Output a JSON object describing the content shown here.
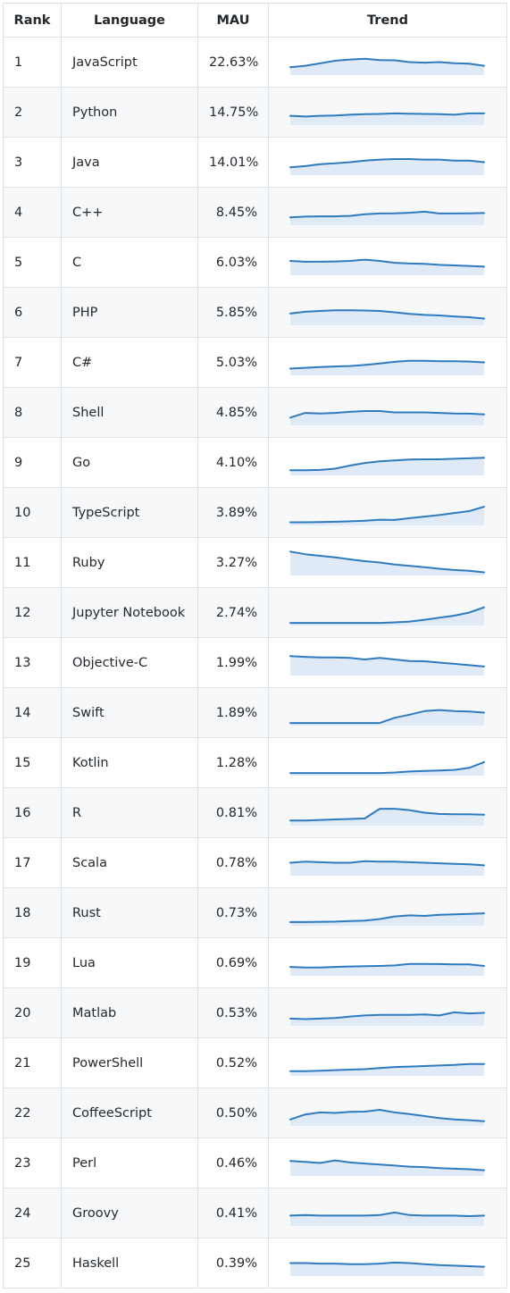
{
  "header": {
    "rank": "Rank",
    "language": "Language",
    "mau": "MAU",
    "trend": "Trend"
  },
  "colors": {
    "line": "#2f7bbf",
    "fill": "#dfeaf6",
    "border": "#dfe2e5",
    "stripe": "#f6f8fa"
  },
  "chart_data": {
    "type": "table",
    "columns": [
      "Rank",
      "Language",
      "MAU",
      "Trend"
    ],
    "rows": [
      {
        "rank": "1",
        "language": "JavaScript",
        "mau": "22.63%",
        "trend": [
          0.3,
          0.36,
          0.45,
          0.55,
          0.6,
          0.63,
          0.58,
          0.57,
          0.5,
          0.48,
          0.5,
          0.46,
          0.44,
          0.36
        ]
      },
      {
        "rank": "2",
        "language": "Python",
        "mau": "14.75%",
        "trend": [
          0.36,
          0.33,
          0.36,
          0.37,
          0.4,
          0.42,
          0.43,
          0.45,
          0.44,
          0.43,
          0.42,
          0.4,
          0.45,
          0.45
        ]
      },
      {
        "rank": "3",
        "language": "Java",
        "mau": "14.01%",
        "trend": [
          0.3,
          0.35,
          0.42,
          0.46,
          0.5,
          0.56,
          0.6,
          0.62,
          0.62,
          0.6,
          0.6,
          0.56,
          0.56,
          0.5
        ]
      },
      {
        "rank": "4",
        "language": "C++",
        "mau": "8.45%",
        "trend": [
          0.3,
          0.33,
          0.34,
          0.34,
          0.36,
          0.42,
          0.45,
          0.46,
          0.48,
          0.52,
          0.45,
          0.45,
          0.46,
          0.47
        ]
      },
      {
        "rank": "5",
        "language": "C",
        "mau": "6.03%",
        "trend": [
          0.55,
          0.52,
          0.52,
          0.53,
          0.55,
          0.6,
          0.55,
          0.48,
          0.45,
          0.44,
          0.4,
          0.38,
          0.36,
          0.33
        ]
      },
      {
        "rank": "6",
        "language": "PHP",
        "mau": "5.85%",
        "trend": [
          0.45,
          0.52,
          0.55,
          0.58,
          0.58,
          0.57,
          0.55,
          0.5,
          0.44,
          0.4,
          0.38,
          0.34,
          0.31,
          0.26
        ]
      },
      {
        "rank": "7",
        "language": "C#",
        "mau": "5.03%",
        "trend": [
          0.26,
          0.29,
          0.32,
          0.34,
          0.36,
          0.4,
          0.46,
          0.52,
          0.56,
          0.56,
          0.54,
          0.54,
          0.53,
          0.5
        ]
      },
      {
        "rank": "8",
        "language": "Shell",
        "mau": "4.85%",
        "trend": [
          0.3,
          0.48,
          0.46,
          0.48,
          0.52,
          0.55,
          0.55,
          0.5,
          0.5,
          0.5,
          0.48,
          0.46,
          0.45,
          0.42
        ]
      },
      {
        "rank": "9",
        "language": "Go",
        "mau": "4.10%",
        "trend": [
          0.2,
          0.2,
          0.21,
          0.26,
          0.38,
          0.48,
          0.54,
          0.58,
          0.61,
          0.62,
          0.62,
          0.64,
          0.66,
          0.68
        ]
      },
      {
        "rank": "10",
        "language": "TypeScript",
        "mau": "3.89%",
        "trend": [
          0.12,
          0.12,
          0.13,
          0.14,
          0.16,
          0.18,
          0.22,
          0.21,
          0.28,
          0.34,
          0.4,
          0.48,
          0.55,
          0.72
        ]
      },
      {
        "rank": "11",
        "language": "Ruby",
        "mau": "3.27%",
        "trend": [
          0.92,
          0.82,
          0.76,
          0.7,
          0.62,
          0.55,
          0.5,
          0.42,
          0.37,
          0.32,
          0.26,
          0.21,
          0.18,
          0.12
        ]
      },
      {
        "rank": "12",
        "language": "Jupyter Notebook",
        "mau": "2.74%",
        "trend": [
          0.1,
          0.1,
          0.1,
          0.1,
          0.1,
          0.1,
          0.1,
          0.12,
          0.15,
          0.22,
          0.3,
          0.38,
          0.5,
          0.7
        ]
      },
      {
        "rank": "13",
        "language": "Objective-C",
        "mau": "1.99%",
        "trend": [
          0.75,
          0.72,
          0.7,
          0.7,
          0.68,
          0.62,
          0.68,
          0.62,
          0.56,
          0.55,
          0.5,
          0.45,
          0.4,
          0.35
        ]
      },
      {
        "rank": "14",
        "language": "Swift",
        "mau": "1.89%",
        "trend": [
          0.1,
          0.1,
          0.1,
          0.1,
          0.1,
          0.1,
          0.1,
          0.3,
          0.42,
          0.56,
          0.6,
          0.56,
          0.54,
          0.5
        ]
      },
      {
        "rank": "15",
        "language": "Kotlin",
        "mau": "1.28%",
        "trend": [
          0.1,
          0.1,
          0.1,
          0.1,
          0.1,
          0.1,
          0.1,
          0.12,
          0.16,
          0.18,
          0.2,
          0.22,
          0.3,
          0.52
        ]
      },
      {
        "rank": "16",
        "language": "R",
        "mau": "0.81%",
        "trend": [
          0.2,
          0.2,
          0.22,
          0.24,
          0.26,
          0.28,
          0.65,
          0.65,
          0.6,
          0.5,
          0.45,
          0.44,
          0.44,
          0.42
        ]
      },
      {
        "rank": "17",
        "language": "Scala",
        "mau": "0.78%",
        "trend": [
          0.5,
          0.54,
          0.52,
          0.5,
          0.5,
          0.56,
          0.54,
          0.54,
          0.52,
          0.5,
          0.48,
          0.46,
          0.44,
          0.4
        ]
      },
      {
        "rank": "18",
        "language": "Rust",
        "mau": "0.73%",
        "trend": [
          0.14,
          0.14,
          0.15,
          0.16,
          0.18,
          0.2,
          0.26,
          0.36,
          0.4,
          0.38,
          0.42,
          0.44,
          0.46,
          0.48
        ]
      },
      {
        "rank": "19",
        "language": "Lua",
        "mau": "0.69%",
        "trend": [
          0.34,
          0.32,
          0.32,
          0.34,
          0.36,
          0.37,
          0.38,
          0.4,
          0.46,
          0.46,
          0.45,
          0.44,
          0.44,
          0.38
        ]
      },
      {
        "rank": "20",
        "language": "Matlab",
        "mau": "0.53%",
        "trend": [
          0.28,
          0.26,
          0.28,
          0.3,
          0.36,
          0.4,
          0.42,
          0.42,
          0.42,
          0.44,
          0.4,
          0.52,
          0.48,
          0.5
        ]
      },
      {
        "rank": "21",
        "language": "PowerShell",
        "mau": "0.52%",
        "trend": [
          0.18,
          0.18,
          0.2,
          0.22,
          0.24,
          0.26,
          0.3,
          0.34,
          0.36,
          0.38,
          0.4,
          0.42,
          0.46,
          0.46
        ]
      },
      {
        "rank": "22",
        "language": "CoffeeScript",
        "mau": "0.50%",
        "trend": [
          0.25,
          0.44,
          0.52,
          0.5,
          0.54,
          0.55,
          0.62,
          0.52,
          0.46,
          0.38,
          0.3,
          0.25,
          0.22,
          0.18
        ]
      },
      {
        "rank": "23",
        "language": "Perl",
        "mau": "0.46%",
        "trend": [
          0.58,
          0.54,
          0.5,
          0.6,
          0.52,
          0.48,
          0.44,
          0.4,
          0.36,
          0.34,
          0.3,
          0.28,
          0.26,
          0.22
        ]
      },
      {
        "rank": "24",
        "language": "Groovy",
        "mau": "0.41%",
        "trend": [
          0.4,
          0.42,
          0.4,
          0.4,
          0.4,
          0.4,
          0.42,
          0.52,
          0.42,
          0.4,
          0.4,
          0.4,
          0.38,
          0.4
        ]
      },
      {
        "rank": "25",
        "language": "Haskell",
        "mau": "0.39%",
        "trend": [
          0.5,
          0.5,
          0.48,
          0.48,
          0.46,
          0.46,
          0.48,
          0.52,
          0.5,
          0.46,
          0.42,
          0.4,
          0.38,
          0.36
        ]
      }
    ]
  }
}
